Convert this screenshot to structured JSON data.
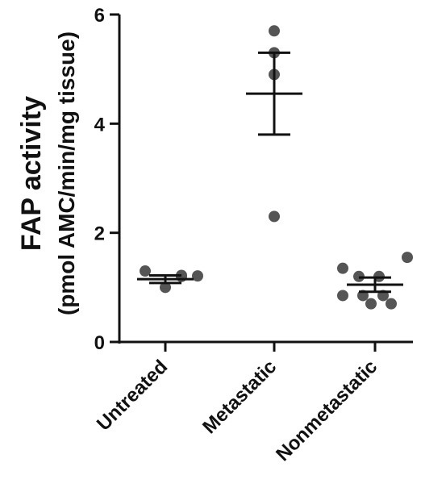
{
  "chart_data": {
    "type": "scatter",
    "ylabel_line1": "FAP activity",
    "ylabel_line2": "(pmol AMC/min/mg tissue)",
    "ylim": [
      0,
      6
    ],
    "y_ticks": [
      "0",
      "2",
      "4",
      "6"
    ],
    "categories": [
      "Untreated",
      "Metastatic",
      "Nonmetastatic"
    ],
    "groups": [
      {
        "category": "Untreated",
        "points": [
          1.3,
          1.22,
          1.2,
          1.21,
          1.0
        ],
        "mean": 1.15,
        "error_upper": 1.22,
        "error_lower": 1.08
      },
      {
        "category": "Metastatic",
        "points": [
          5.7,
          5.3,
          4.9,
          2.3
        ],
        "mean": 4.55,
        "error_upper": 5.3,
        "error_lower": 3.8
      },
      {
        "category": "Nonmetastatic",
        "points": [
          1.35,
          1.55,
          1.2,
          1.2,
          0.85,
          0.85,
          0.85,
          0.7,
          0.7
        ],
        "mean": 1.05,
        "error_upper": 1.18,
        "error_lower": 0.92
      }
    ],
    "colors": {
      "points": "#555555",
      "lines": "#111111"
    },
    "grid": false,
    "legend": "none"
  }
}
